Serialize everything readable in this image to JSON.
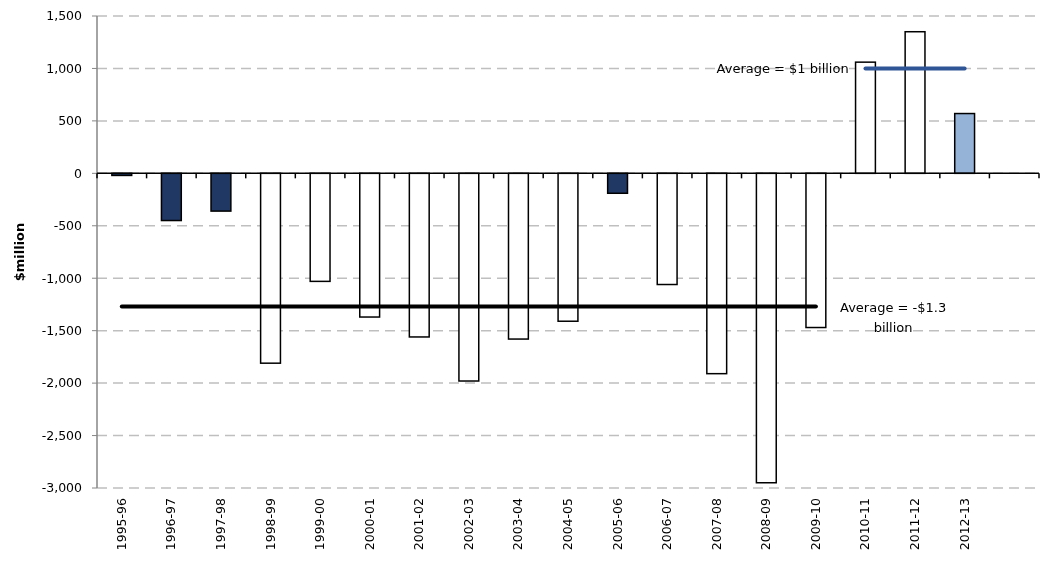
{
  "chart_data": {
    "type": "bar",
    "ylabel": "$million",
    "categories": [
      "1995-96",
      "1996-97",
      "1997-98",
      "1998-99",
      "1999-00",
      "2000-01",
      "2001-02",
      "2002-03",
      "2003-04",
      "2004-05",
      "2005-06",
      "2006-07",
      "2007-08",
      "2008-09",
      "2009-10",
      "2010-11",
      "2011-12",
      "2012-13",
      null
    ],
    "series": [
      {
        "colors": [
          "#1f3864",
          "#1f3864",
          "#1f3864",
          "#ffffff",
          "#ffffff",
          "#ffffff",
          "#ffffff",
          "#ffffff",
          "#ffffff",
          "#ffffff",
          "#1f3864",
          "#ffffff",
          "#ffffff",
          "#ffffff",
          "#ffffff",
          "#ffffff",
          "#ffffff",
          "#95b3d7",
          null
        ],
        "values": [
          -20,
          -450,
          -360,
          -1810,
          -1030,
          -1370,
          -1560,
          -1980,
          -1580,
          -1410,
          -190,
          -1060,
          -1910,
          -2950,
          -1470,
          1060,
          1350,
          570,
          null
        ]
      },
      {
        "color": "#000000",
        "type": "line",
        "values": [
          -1270,
          -1270,
          -1270,
          -1270,
          -1270,
          -1270,
          -1270,
          -1270,
          -1270,
          -1270,
          -1270,
          -1270,
          -1270,
          -1270,
          -1270,
          null,
          null,
          null,
          null
        ]
      },
      {
        "type": "line",
        "color": "#2f5597",
        "values": [
          null,
          null,
          null,
          null,
          null,
          null,
          null,
          null,
          null,
          null,
          null,
          null,
          null,
          null,
          null,
          1000,
          1000,
          1000,
          null
        ]
      }
    ],
    "ylim": [
      -3000,
      1500
    ],
    "yticks": [
      {
        "value": -3000,
        "label": "-3,000"
      },
      {
        "value": -2500,
        "label": "-2,500"
      },
      {
        "value": -2000,
        "label": "-2,000"
      },
      {
        "value": -1500,
        "label": "-1,500"
      },
      {
        "value": -1000,
        "label": "-1,000"
      },
      -500,
      0,
      500,
      {
        "value": 1000,
        "label": "1,000"
      },
      {
        "value": 1500,
        "label": "1,500"
      }
    ],
    "grid": "y",
    "annotations": [
      {
        "text": "Average =  $1 billion",
        "x": "2010-11",
        "y": 1000
      },
      {
        "text": "Average =  -$1.3 billion",
        "x": "2009-10",
        "y": -1270
      }
    ]
  }
}
